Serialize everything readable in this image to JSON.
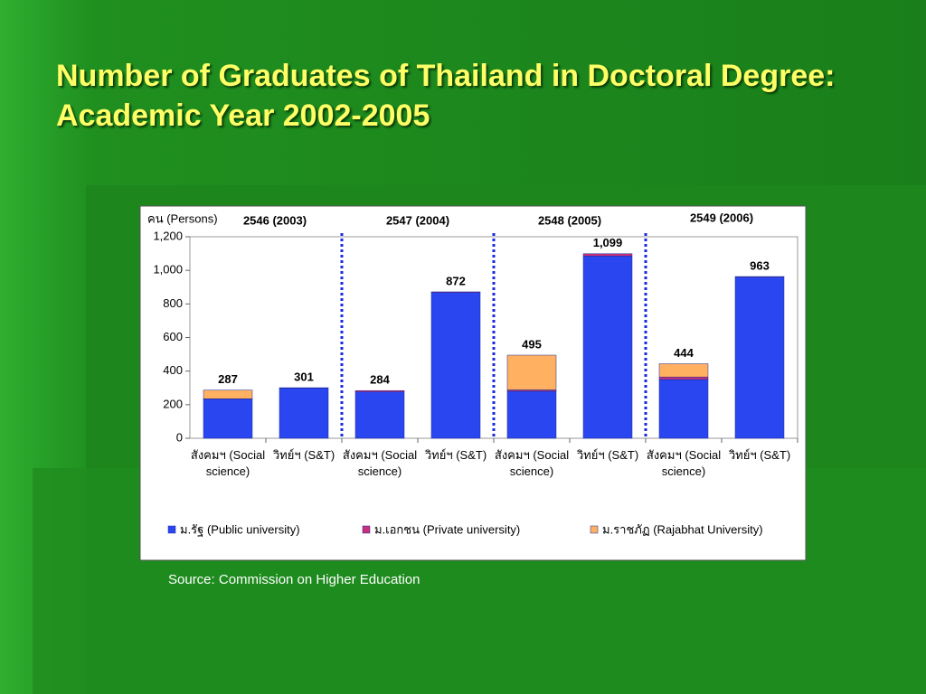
{
  "title": "Number of Graduates of Thailand in Doctoral Degree: Academic Year 2002-2005",
  "source": "Source: Commission on Higher Education",
  "chart_data": {
    "type": "stacked-bar",
    "y_label": "คน (Persons)",
    "groups": [
      "2546 (2003)",
      "2547 (2004)",
      "2548 (2005)",
      "2549 (2006)"
    ],
    "categories": [
      "สังคมฯ (Social science)",
      "วิทย์ฯ (S&T)",
      "สังคมฯ (Social science)",
      "วิทย์ฯ (S&T)",
      "สังคมฯ (Social science)",
      "วิทย์ฯ (S&T)",
      "สังคมฯ (Social science)",
      "วิทย์ฯ (S&T)"
    ],
    "series": [
      {
        "name": "ม.รัฐ (Public university)",
        "color": "#2a46f0",
        "values": [
          233,
          299,
          276,
          868,
          280,
          1085,
          350,
          960
        ]
      },
      {
        "name": "ม.เอกชน (Private university)",
        "color": "#c8307a",
        "values": [
          2,
          2,
          8,
          4,
          8,
          14,
          15,
          3
        ]
      },
      {
        "name": "ม.ราชภัฏ (Rajabhat University)",
        "color": "#ffb060",
        "values": [
          52,
          0,
          0,
          0,
          207,
          0,
          79,
          0
        ]
      }
    ],
    "totals": {
      "values": [
        287,
        301,
        284,
        872,
        495,
        1099,
        444,
        963
      ],
      "value_labels": [
        "287",
        "301",
        "284",
        "872",
        "495",
        "1,099",
        "444",
        "963"
      ]
    },
    "ylim": [
      0,
      1200
    ],
    "yticks": [
      0,
      200,
      400,
      600,
      800,
      {
        "value": 1000,
        "label": "1,000"
      },
      {
        "value": 1200,
        "label": "1,200"
      }
    ],
    "grid": false
  }
}
